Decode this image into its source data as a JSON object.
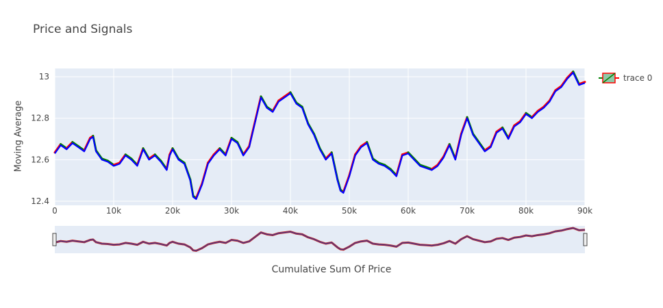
{
  "chart_data": {
    "type": "line",
    "title": "Price and Signals",
    "xlabel": "Cumulative Sum Of Price",
    "ylabel": "Moving Average",
    "xlim": [
      0,
      90000
    ],
    "ylim": [
      12.38,
      13.04
    ],
    "x_ticks": [
      0,
      10000,
      20000,
      30000,
      40000,
      50000,
      60000,
      70000,
      80000,
      90000
    ],
    "x_tick_labels": [
      "0",
      "10k",
      "20k",
      "30k",
      "40k",
      "50k",
      "60k",
      "70k",
      "80k",
      "90k"
    ],
    "y_ticks": [
      12.4,
      12.6,
      12.8,
      13
    ],
    "y_tick_labels": [
      "12.4",
      "12.6",
      "12.8",
      "13"
    ],
    "grid": true,
    "legend_position": "top-right",
    "rangeslider": true,
    "series": [
      {
        "name": "trace 0",
        "color_up": "#ff0000",
        "color_down": "#008000",
        "overlay_color": "#0000ff",
        "x": [
          0,
          1000,
          2000,
          3000,
          4000,
          5000,
          6000,
          6500,
          7000,
          8000,
          9000,
          10000,
          11000,
          12000,
          13000,
          14000,
          15000,
          16000,
          17000,
          18000,
          19000,
          19500,
          20000,
          21000,
          22000,
          23000,
          23500,
          24000,
          25000,
          26000,
          27000,
          28000,
          29000,
          30000,
          31000,
          32000,
          33000,
          34000,
          35000,
          36000,
          37000,
          38000,
          39000,
          40000,
          41000,
          42000,
          43000,
          44000,
          45000,
          46000,
          47000,
          48000,
          48500,
          49000,
          50000,
          51000,
          52000,
          53000,
          54000,
          55000,
          56000,
          57000,
          58000,
          59000,
          60000,
          61000,
          62000,
          63000,
          64000,
          65000,
          66000,
          67000,
          68000,
          69000,
          70000,
          71000,
          72000,
          73000,
          74000,
          75000,
          76000,
          77000,
          78000,
          79000,
          80000,
          81000,
          82000,
          83000,
          84000,
          85000,
          86000,
          87000,
          88000,
          89000,
          90000
        ],
        "values": [
          12.63,
          12.67,
          12.65,
          12.68,
          12.66,
          12.64,
          12.7,
          12.71,
          12.64,
          12.6,
          12.59,
          12.57,
          12.58,
          12.62,
          12.6,
          12.57,
          12.65,
          12.6,
          12.62,
          12.59,
          12.55,
          12.62,
          12.65,
          12.6,
          12.58,
          12.5,
          12.42,
          12.41,
          12.48,
          12.58,
          12.62,
          12.65,
          12.62,
          12.7,
          12.68,
          12.62,
          12.66,
          12.78,
          12.9,
          12.85,
          12.83,
          12.88,
          12.9,
          12.92,
          12.87,
          12.85,
          12.77,
          12.72,
          12.65,
          12.6,
          12.63,
          12.5,
          12.45,
          12.44,
          12.52,
          12.62,
          12.66,
          12.68,
          12.6,
          12.58,
          12.57,
          12.55,
          12.52,
          12.62,
          12.63,
          12.6,
          12.57,
          12.56,
          12.55,
          12.57,
          12.61,
          12.67,
          12.6,
          12.72,
          12.8,
          12.72,
          12.68,
          12.64,
          12.66,
          12.73,
          12.75,
          12.7,
          12.76,
          12.78,
          12.82,
          12.8,
          12.83,
          12.85,
          12.88,
          12.93,
          12.95,
          12.99,
          13.02,
          12.96,
          12.97
        ]
      }
    ]
  }
}
